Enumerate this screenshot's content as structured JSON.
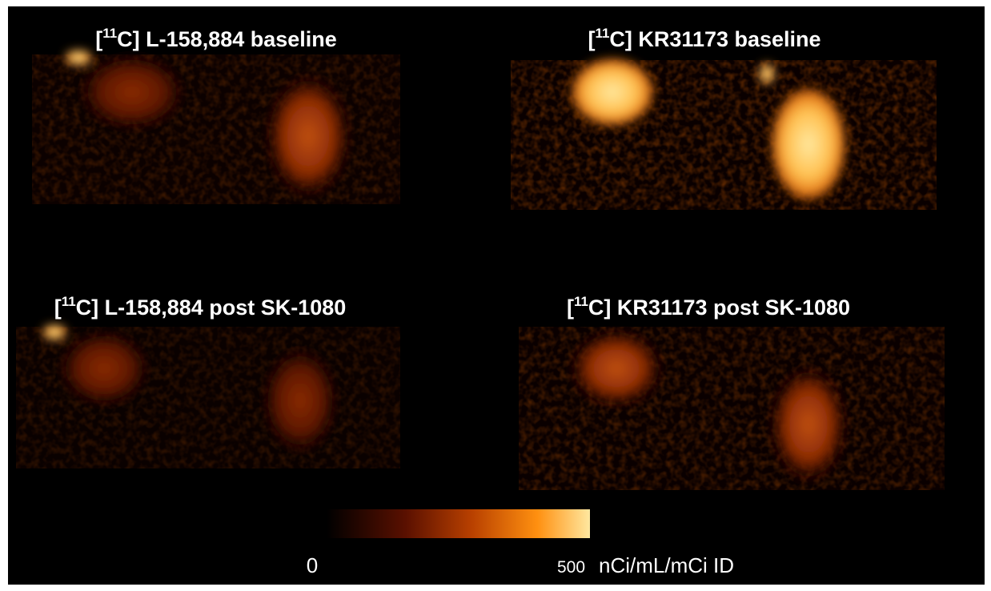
{
  "panels": [
    {
      "prefix": "[",
      "sup": "11",
      "label": "C] L-158,884 baseline"
    },
    {
      "prefix": "[",
      "sup": "11",
      "label": "C] KR31173 baseline"
    },
    {
      "prefix": "[",
      "sup": "11",
      "label": "C] L-158,884 post SK-1080"
    },
    {
      "prefix": "[",
      "sup": "11",
      "label": "C] KR31173 post SK-1080"
    }
  ],
  "colorbar": {
    "min": 0,
    "max": 500,
    "unit": "nCi/mL/mCi ID"
  }
}
